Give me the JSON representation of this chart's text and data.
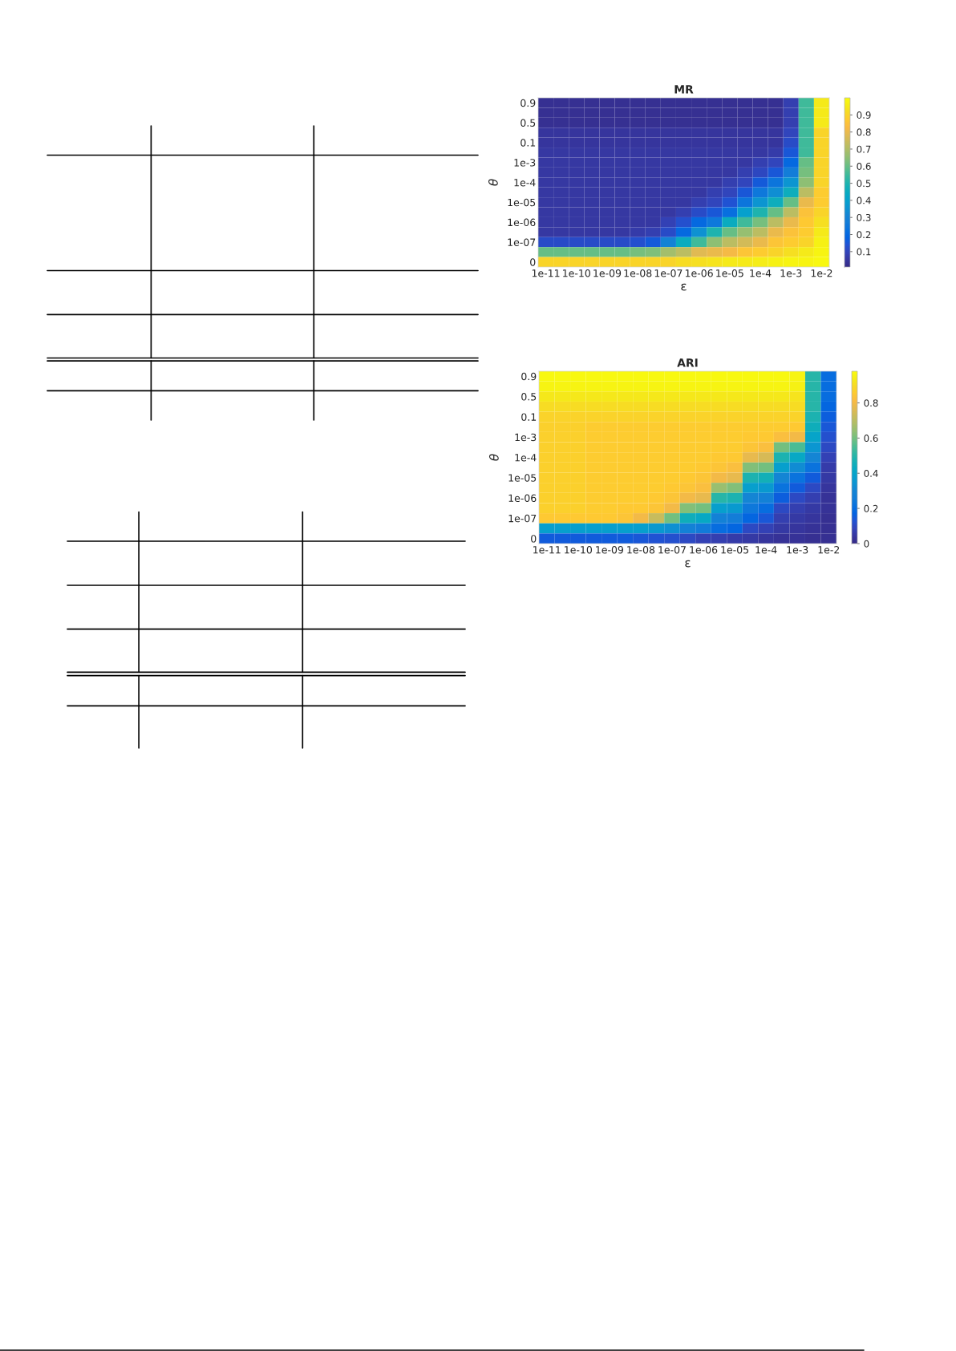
{
  "chart_data": [
    {
      "type": "heatmap",
      "title": "MR",
      "xlabel": "ε",
      "ylabel": "θ",
      "categories": [
        "1e-11",
        null,
        "1e-10",
        null,
        "1e-09",
        null,
        "1e-08",
        null,
        "1e-07",
        null,
        "1e-06",
        null,
        "1e-05",
        null,
        "1e-4",
        null,
        "1e-3",
        null,
        "1e-2"
      ],
      "y_categories": [
        "0.9",
        null,
        "0.5",
        null,
        "0.1",
        null,
        "1e-3",
        null,
        "1e-4",
        null,
        "1e-05",
        null,
        "1e-06",
        null,
        "1e-07",
        null,
        "0"
      ],
      "cells": [
        [
          0.03,
          0.03,
          0.03,
          0.03,
          0.03,
          0.03,
          0.03,
          0.03,
          0.03,
          0.03,
          0.03,
          0.03,
          0.03,
          0.03,
          0.03,
          0.03,
          0.08,
          0.55,
          0.95
        ],
        [
          0.03,
          0.03,
          0.03,
          0.03,
          0.03,
          0.03,
          0.03,
          0.03,
          0.03,
          0.03,
          0.03,
          0.03,
          0.03,
          0.03,
          0.03,
          0.03,
          0.08,
          0.55,
          0.95
        ],
        [
          0.03,
          0.03,
          0.03,
          0.03,
          0.03,
          0.03,
          0.03,
          0.03,
          0.03,
          0.03,
          0.03,
          0.03,
          0.03,
          0.03,
          0.03,
          0.03,
          0.08,
          0.55,
          0.95
        ],
        [
          0.05,
          0.05,
          0.05,
          0.05,
          0.05,
          0.05,
          0.05,
          0.05,
          0.05,
          0.05,
          0.05,
          0.05,
          0.05,
          0.05,
          0.05,
          0.05,
          0.1,
          0.55,
          0.9
        ],
        [
          0.05,
          0.05,
          0.05,
          0.05,
          0.05,
          0.05,
          0.05,
          0.05,
          0.05,
          0.05,
          0.05,
          0.05,
          0.05,
          0.05,
          0.05,
          0.05,
          0.12,
          0.55,
          0.9
        ],
        [
          0.06,
          0.06,
          0.06,
          0.06,
          0.06,
          0.06,
          0.06,
          0.06,
          0.06,
          0.06,
          0.06,
          0.06,
          0.06,
          0.06,
          0.06,
          0.07,
          0.15,
          0.55,
          0.9
        ],
        [
          0.06,
          0.06,
          0.06,
          0.06,
          0.06,
          0.06,
          0.06,
          0.06,
          0.06,
          0.06,
          0.06,
          0.06,
          0.06,
          0.06,
          0.08,
          0.1,
          0.2,
          0.6,
          0.9
        ],
        [
          0.06,
          0.06,
          0.06,
          0.06,
          0.06,
          0.06,
          0.06,
          0.06,
          0.06,
          0.06,
          0.06,
          0.06,
          0.06,
          0.08,
          0.11,
          0.15,
          0.27,
          0.62,
          0.9
        ],
        [
          0.06,
          0.06,
          0.06,
          0.06,
          0.06,
          0.06,
          0.06,
          0.06,
          0.06,
          0.06,
          0.06,
          0.06,
          0.08,
          0.1,
          0.16,
          0.24,
          0.36,
          0.65,
          0.9
        ],
        [
          0.06,
          0.06,
          0.06,
          0.06,
          0.06,
          0.06,
          0.06,
          0.06,
          0.06,
          0.06,
          0.06,
          0.08,
          0.1,
          0.15,
          0.25,
          0.34,
          0.46,
          0.72,
          0.88
        ],
        [
          0.06,
          0.06,
          0.06,
          0.06,
          0.06,
          0.06,
          0.06,
          0.06,
          0.06,
          0.06,
          0.08,
          0.1,
          0.14,
          0.24,
          0.36,
          0.46,
          0.6,
          0.8,
          0.88
        ],
        [
          0.06,
          0.06,
          0.06,
          0.06,
          0.06,
          0.06,
          0.06,
          0.06,
          0.06,
          0.08,
          0.12,
          0.15,
          0.22,
          0.4,
          0.5,
          0.6,
          0.72,
          0.85,
          0.9
        ],
        [
          0.06,
          0.06,
          0.06,
          0.06,
          0.06,
          0.06,
          0.06,
          0.06,
          0.09,
          0.13,
          0.2,
          0.25,
          0.45,
          0.55,
          0.62,
          0.72,
          0.8,
          0.87,
          0.93
        ],
        [
          0.06,
          0.06,
          0.06,
          0.06,
          0.06,
          0.06,
          0.07,
          0.08,
          0.12,
          0.2,
          0.35,
          0.5,
          0.6,
          0.66,
          0.72,
          0.8,
          0.85,
          0.88,
          0.95
        ],
        [
          0.12,
          0.12,
          0.12,
          0.12,
          0.12,
          0.12,
          0.13,
          0.16,
          0.3,
          0.45,
          0.55,
          0.65,
          0.72,
          0.76,
          0.8,
          0.86,
          0.88,
          0.9,
          0.97
        ],
        [
          0.6,
          0.6,
          0.6,
          0.6,
          0.6,
          0.6,
          0.62,
          0.63,
          0.68,
          0.72,
          0.78,
          0.8,
          0.82,
          0.86,
          0.88,
          0.9,
          0.93,
          0.95,
          0.98
        ],
        [
          0.9,
          0.9,
          0.9,
          0.9,
          0.9,
          0.9,
          0.9,
          0.9,
          0.9,
          0.92,
          0.93,
          0.94,
          0.95,
          0.95,
          0.96,
          0.97,
          0.98,
          0.98,
          0.99
        ]
      ],
      "clim": [
        0.01,
        1
      ],
      "cticks": [
        0.1,
        0.2,
        0.3,
        0.4,
        0.5,
        0.6,
        0.7,
        0.8,
        0.9
      ]
    },
    {
      "type": "heatmap",
      "title": "ARI",
      "xlabel": "ε",
      "ylabel": "θ",
      "categories": [
        "1e-11",
        null,
        "1e-10",
        null,
        "1e-09",
        null,
        "1e-08",
        null,
        "1e-07",
        null,
        "1e-06",
        null,
        "1e-05",
        null,
        "1e-4",
        null,
        "1e-3",
        null,
        "1e-2"
      ],
      "y_categories": [
        "0.9",
        null,
        "0.5",
        null,
        "0.1",
        null,
        "1e-3",
        null,
        "1e-4",
        null,
        "1e-05",
        null,
        "1e-06",
        null,
        "1e-07",
        null,
        "0"
      ],
      "cells": [
        [
          0.97,
          0.97,
          0.97,
          0.97,
          0.97,
          0.97,
          0.97,
          0.97,
          0.97,
          0.97,
          0.97,
          0.97,
          0.97,
          0.97,
          0.97,
          0.97,
          0.96,
          0.5,
          0.2
        ],
        [
          0.96,
          0.96,
          0.96,
          0.96,
          0.96,
          0.96,
          0.96,
          0.96,
          0.96,
          0.96,
          0.96,
          0.96,
          0.96,
          0.96,
          0.96,
          0.96,
          0.95,
          0.5,
          0.2
        ],
        [
          0.93,
          0.93,
          0.93,
          0.93,
          0.93,
          0.93,
          0.93,
          0.93,
          0.93,
          0.93,
          0.93,
          0.93,
          0.93,
          0.93,
          0.93,
          0.93,
          0.92,
          0.5,
          0.2
        ],
        [
          0.9,
          0.9,
          0.9,
          0.9,
          0.9,
          0.9,
          0.9,
          0.9,
          0.9,
          0.9,
          0.9,
          0.9,
          0.9,
          0.9,
          0.9,
          0.9,
          0.9,
          0.5,
          0.18
        ],
        [
          0.88,
          0.88,
          0.88,
          0.88,
          0.88,
          0.88,
          0.88,
          0.88,
          0.88,
          0.88,
          0.88,
          0.88,
          0.88,
          0.88,
          0.88,
          0.88,
          0.88,
          0.48,
          0.16
        ],
        [
          0.87,
          0.87,
          0.87,
          0.86,
          0.86,
          0.86,
          0.86,
          0.86,
          0.86,
          0.86,
          0.86,
          0.86,
          0.86,
          0.86,
          0.86,
          0.86,
          0.85,
          0.45,
          0.14
        ],
        [
          0.87,
          0.87,
          0.87,
          0.86,
          0.86,
          0.86,
          0.86,
          0.86,
          0.86,
          0.86,
          0.86,
          0.86,
          0.86,
          0.85,
          0.85,
          0.82,
          0.8,
          0.4,
          0.12
        ],
        [
          0.87,
          0.87,
          0.87,
          0.86,
          0.86,
          0.86,
          0.86,
          0.86,
          0.86,
          0.86,
          0.86,
          0.86,
          0.86,
          0.84,
          0.82,
          0.6,
          0.55,
          0.35,
          0.1
        ],
        [
          0.87,
          0.87,
          0.87,
          0.86,
          0.86,
          0.86,
          0.86,
          0.86,
          0.86,
          0.86,
          0.86,
          0.85,
          0.85,
          0.78,
          0.75,
          0.48,
          0.42,
          0.3,
          0.08
        ],
        [
          0.87,
          0.87,
          0.87,
          0.86,
          0.86,
          0.86,
          0.86,
          0.86,
          0.86,
          0.86,
          0.85,
          0.84,
          0.82,
          0.62,
          0.6,
          0.38,
          0.32,
          0.22,
          0.06
        ],
        [
          0.87,
          0.87,
          0.87,
          0.86,
          0.86,
          0.86,
          0.86,
          0.86,
          0.86,
          0.85,
          0.84,
          0.8,
          0.78,
          0.48,
          0.46,
          0.3,
          0.22,
          0.15,
          0.05
        ],
        [
          0.87,
          0.87,
          0.87,
          0.86,
          0.86,
          0.86,
          0.86,
          0.86,
          0.85,
          0.84,
          0.82,
          0.65,
          0.62,
          0.38,
          0.36,
          0.22,
          0.15,
          0.1,
          0.04
        ],
        [
          0.87,
          0.87,
          0.87,
          0.86,
          0.86,
          0.86,
          0.86,
          0.85,
          0.84,
          0.8,
          0.78,
          0.5,
          0.48,
          0.3,
          0.28,
          0.16,
          0.1,
          0.07,
          0.03
        ],
        [
          0.87,
          0.87,
          0.87,
          0.86,
          0.86,
          0.85,
          0.85,
          0.84,
          0.8,
          0.62,
          0.6,
          0.38,
          0.36,
          0.24,
          0.2,
          0.1,
          0.07,
          0.05,
          0.03
        ],
        [
          0.85,
          0.85,
          0.85,
          0.85,
          0.85,
          0.84,
          0.8,
          0.72,
          0.6,
          0.45,
          0.42,
          0.28,
          0.26,
          0.18,
          0.14,
          0.07,
          0.05,
          0.04,
          0.02
        ],
        [
          0.38,
          0.38,
          0.38,
          0.38,
          0.38,
          0.38,
          0.38,
          0.36,
          0.33,
          0.28,
          0.25,
          0.2,
          0.18,
          0.1,
          0.08,
          0.05,
          0.04,
          0.03,
          0.02
        ],
        [
          0.15,
          0.15,
          0.15,
          0.15,
          0.15,
          0.15,
          0.14,
          0.13,
          0.12,
          0.1,
          0.08,
          0.07,
          0.06,
          0.05,
          0.04,
          0.03,
          0.03,
          0.02,
          0.02
        ]
      ],
      "clim": [
        0,
        0.98
      ],
      "cticks": [
        0,
        0.2,
        0.4,
        0.6,
        0.8
      ]
    }
  ]
}
